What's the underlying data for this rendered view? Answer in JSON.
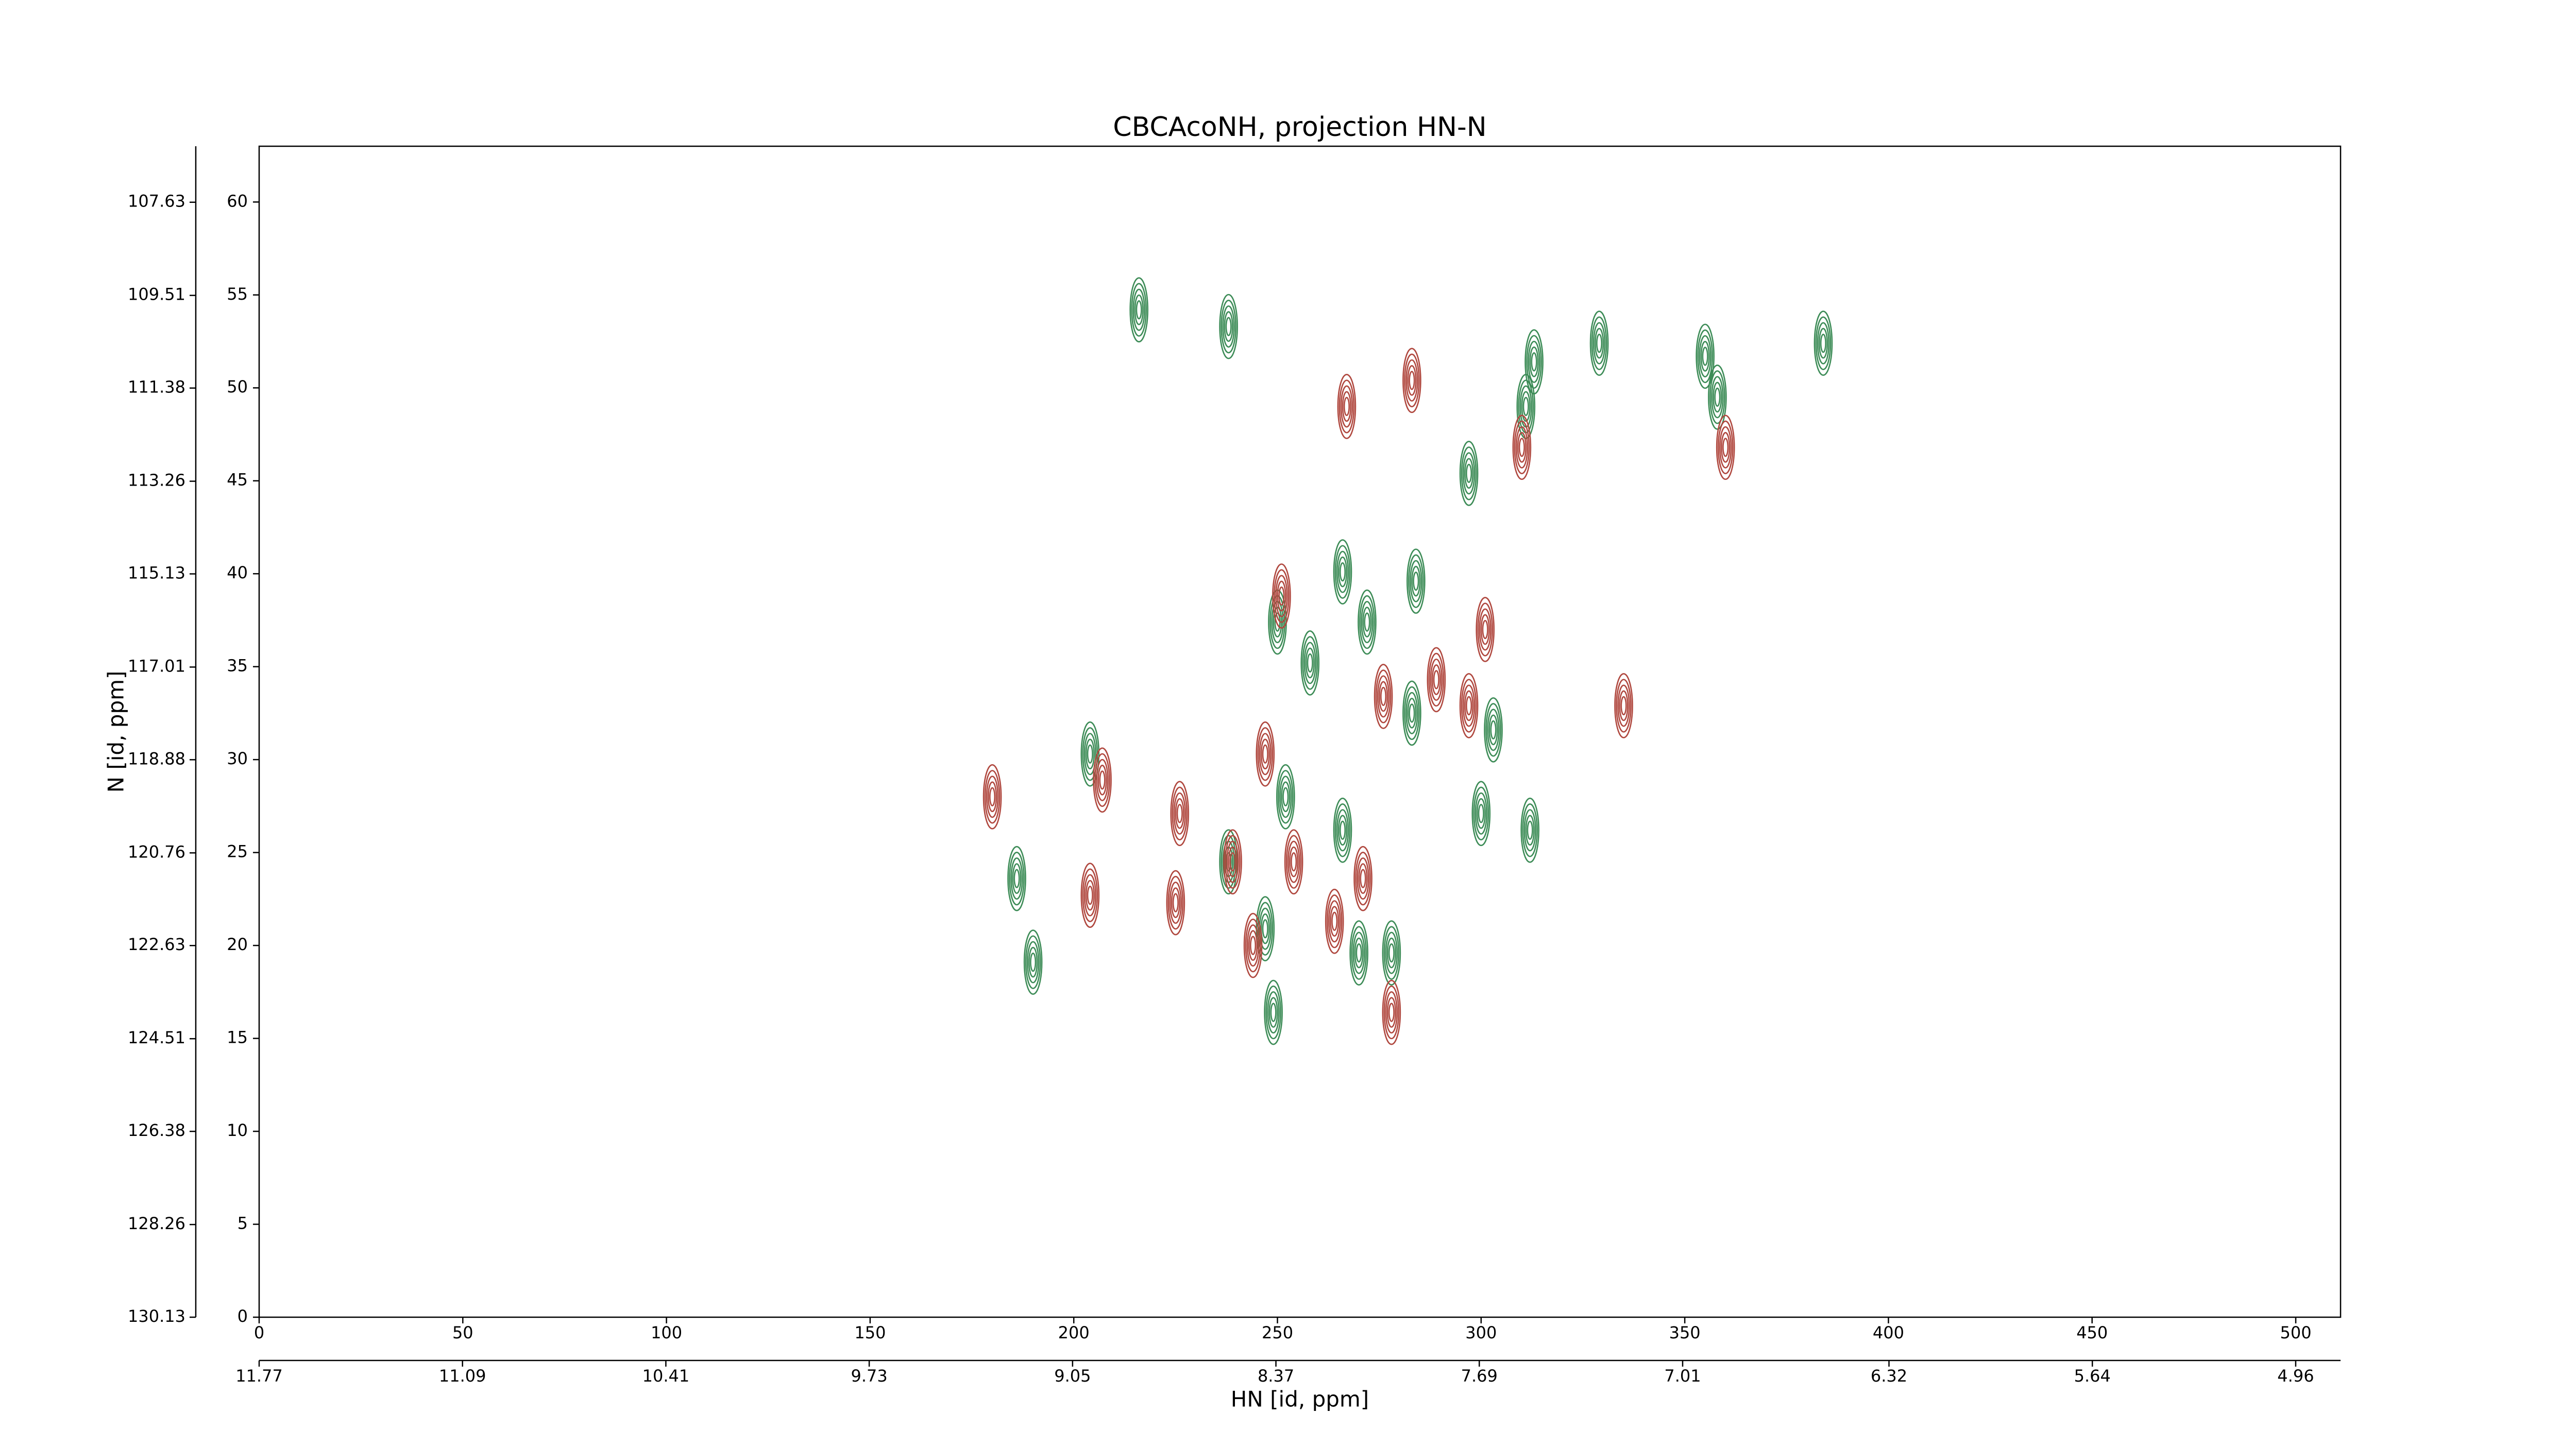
{
  "chart_data": {
    "type": "contour",
    "title": "CBCAcoNH, projection HN-N",
    "xlabel": "HN [id, ppm]",
    "ylabel": "N [id, ppm]",
    "xlim": [
      0,
      511
    ],
    "ylim": [
      0,
      63
    ],
    "xticks": [
      0,
      50,
      100,
      150,
      200,
      250,
      300,
      350,
      400,
      450,
      500
    ],
    "yticks": [
      0,
      5,
      10,
      15,
      20,
      25,
      30,
      35,
      40,
      45,
      50,
      55,
      60
    ],
    "x2lim": [
      11.77,
      4.81
    ],
    "x2ticks": [
      11.77,
      11.09,
      10.41,
      9.73,
      9.05,
      8.37,
      7.69,
      7.01,
      6.32,
      5.64,
      4.96
    ],
    "y2lim": [
      130.13,
      106.5
    ],
    "y2ticks": [
      130.13,
      128.26,
      126.38,
      124.51,
      122.63,
      120.76,
      118.88,
      117.01,
      115.13,
      113.26,
      111.38,
      109.51,
      107.63
    ],
    "series": [
      {
        "color": "#3d8c57",
        "x": [
          216,
          238,
          329,
          355,
          384,
          313,
          297,
          311,
          358,
          284,
          266,
          272,
          250,
          258,
          204,
          283,
          303,
          252,
          312,
          300,
          186,
          190,
          238,
          247,
          270,
          278,
          266,
          249
        ],
        "y": [
          54.2,
          53.3,
          52.4,
          51.7,
          52.4,
          51.4,
          45.4,
          49,
          49.5,
          39.6,
          40.1,
          37.4,
          37.4,
          35.2,
          30.3,
          32.5,
          31.6,
          28,
          26.2,
          27.1,
          23.6,
          19.1,
          24.5,
          20.9,
          19.6,
          19.6,
          26.2,
          16.4
        ]
      },
      {
        "color": "#b0483f",
        "x": [
          283,
          267,
          310,
          360,
          301,
          335,
          251,
          276,
          289,
          297,
          180,
          226,
          247,
          204,
          225,
          239,
          254,
          271,
          244,
          264,
          278,
          207
        ],
        "y": [
          50.4,
          49,
          46.8,
          46.8,
          37,
          32.9,
          38.8,
          33.4,
          34.3,
          32.9,
          28,
          27.1,
          30.3,
          22.7,
          22.3,
          24.5,
          24.5,
          23.6,
          20,
          21.3,
          16.4,
          28.9
        ]
      }
    ]
  }
}
